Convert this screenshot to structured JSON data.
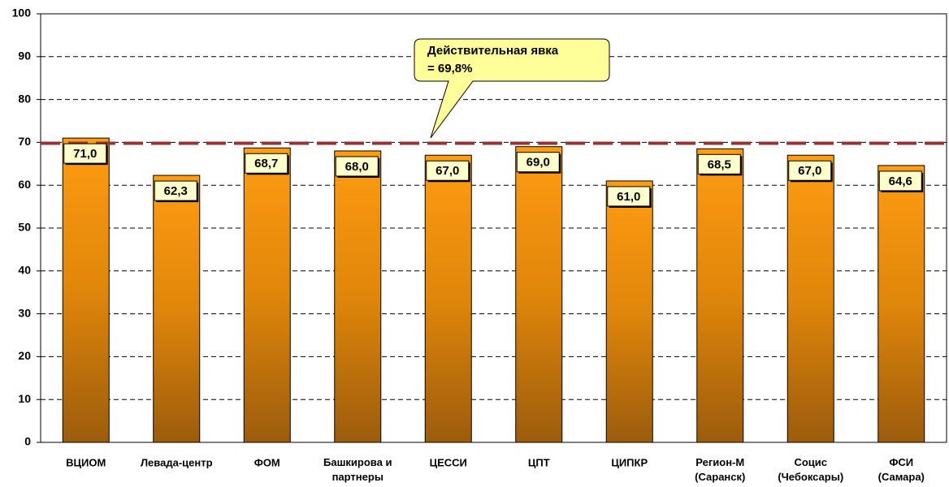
{
  "chart_data": {
    "type": "bar",
    "categories": [
      "ВЦИОМ",
      "Левада-центр",
      "ФОМ",
      "Башкирова и\nпартнеры",
      "ЦЕССИ",
      "ЦПТ",
      "ЦИПКР",
      "Регион-М\n(Саранск)",
      "Социс\n(Чебоксары)",
      "ФСИ\n(Самара)"
    ],
    "values": [
      71.0,
      62.3,
      68.7,
      68.0,
      67.0,
      69.0,
      61.0,
      68.5,
      67.0,
      64.6
    ],
    "value_labels": [
      "71,0",
      "62,3",
      "68,7",
      "68,0",
      "67,0",
      "69,0",
      "61,0",
      "68,5",
      "67,0",
      "64,6"
    ],
    "color": "#f7960f",
    "ylim": [
      0,
      100
    ],
    "yticks": [
      0,
      10,
      20,
      30,
      40,
      50,
      60,
      70,
      80,
      90,
      100
    ],
    "grid": true,
    "reference_line": {
      "value": 69.8,
      "color": "#993333"
    },
    "annotation": {
      "lines": [
        "Действительная явка",
        "= 69,8%"
      ]
    }
  }
}
